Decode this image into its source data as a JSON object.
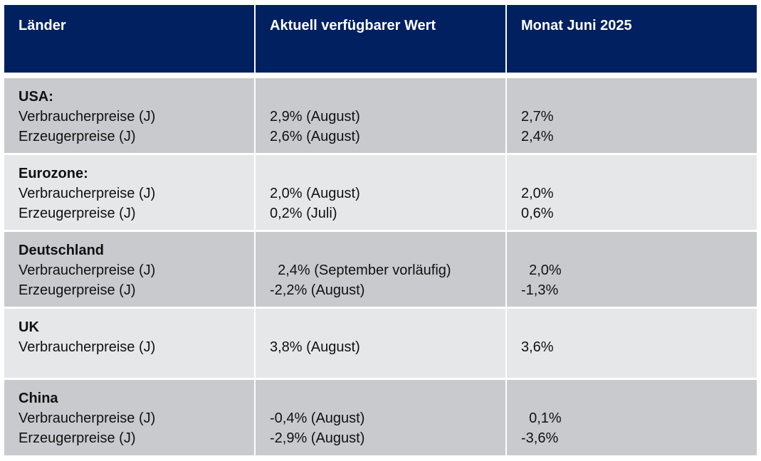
{
  "table": {
    "header": [
      "Länder",
      "Aktuell verfügbarer Wert",
      "Monat Juni 2025"
    ],
    "groups": [
      {
        "country": "USA:",
        "rows": [
          [
            "Verbraucherpreise (J)",
            "2,9% (August)",
            "2,7%"
          ],
          [
            "Erzeugerpreise (J)",
            "2,6% (August)",
            "2,4%"
          ]
        ]
      },
      {
        "country": "Eurozone:",
        "rows": [
          [
            "Verbraucherpreise (J)",
            "2,0% (August)",
            "2,0%"
          ],
          [
            "Erzeugerpreise (J)",
            "0,2% (Juli)",
            "0,6%"
          ]
        ]
      },
      {
        "country": "Deutschland",
        "rows": [
          [
            "Verbraucherpreise (J)",
            "  2,4% (September vorläufig)",
            "  2,0%"
          ],
          [
            "Erzeugerpreise (J)",
            "-2,2% (August)",
            "-1,3%"
          ]
        ]
      },
      {
        "country": "UK",
        "rows": [
          [
            "Verbraucherpreise (J)",
            "3,8% (August)",
            "3,6%"
          ]
        ]
      },
      {
        "country": "China",
        "rows": [
          [
            "Verbraucherpreise (J)",
            "-0,4% (August)",
            "  0,1%"
          ],
          [
            "Erzeugerpreise (J)",
            "-2,9% (August)",
            "-3,6%"
          ]
        ]
      }
    ]
  }
}
